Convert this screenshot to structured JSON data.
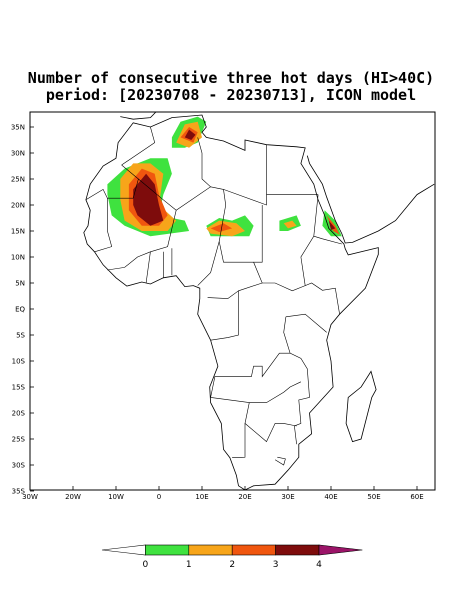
{
  "title": [
    "Number of consecutive three hot days (HI>40C)",
    "period: [20230708 - 20230713], ICON model"
  ],
  "lat_labels": [
    "35N",
    "30N",
    "25N",
    "20N",
    "15N",
    "10N",
    "5N",
    "EQ",
    "5S",
    "10S",
    "15S",
    "20S",
    "25S",
    "30S",
    "35S"
  ],
  "lon_labels": [
    "30W",
    "20W",
    "10W",
    "0",
    "10E",
    "20E",
    "30E",
    "40E",
    "50E",
    "60E"
  ],
  "colorbar": {
    "colors": [
      "#ffffff",
      "#3fe23f",
      "#f7a51a",
      "#f0560f",
      "#7e0c0c",
      "#9b1468"
    ],
    "labels": [
      0,
      1,
      2,
      3,
      4
    ]
  }
}
